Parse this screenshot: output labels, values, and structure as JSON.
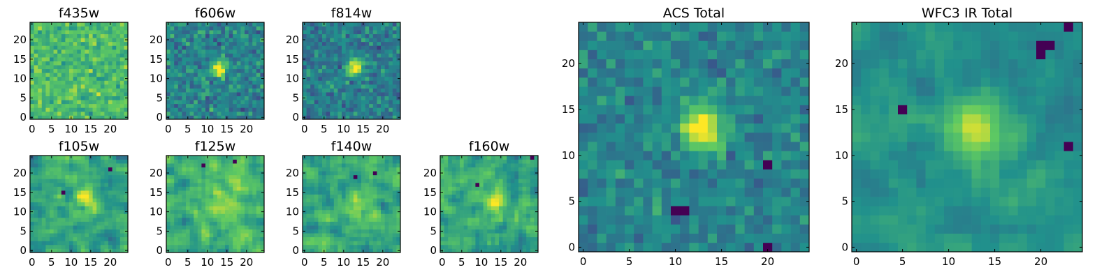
{
  "figure": {
    "background": "#ffffff",
    "colormap": "viridis",
    "colormap_stops": [
      "#440154",
      "#3b528b",
      "#21918c",
      "#5ec962",
      "#fde725"
    ]
  },
  "chart_data": [
    {
      "type": "heatmap",
      "title": "f435w",
      "xlim": [
        0,
        24
      ],
      "ylim": [
        0,
        24
      ],
      "xticks": [
        0,
        5,
        10,
        15,
        20
      ],
      "yticks": [
        0,
        5,
        10,
        15,
        20
      ],
      "grid_shape": [
        25,
        25
      ],
      "source_center": [
        13,
        12
      ],
      "source_radius": 1.5,
      "source_strength": 0.0,
      "noise_mean": 0.68,
      "noise_scale": 0.22,
      "smooth": 0,
      "seed": 11,
      "dark_spots": []
    },
    {
      "type": "heatmap",
      "title": "f606w",
      "xlim": [
        0,
        24
      ],
      "ylim": [
        0,
        24
      ],
      "xticks": [
        0,
        5,
        10,
        15,
        20
      ],
      "yticks": [
        0,
        5,
        10,
        15,
        20
      ],
      "grid_shape": [
        25,
        25
      ],
      "source_center": [
        13,
        12.5
      ],
      "source_radius": 1.4,
      "source_strength": 0.55,
      "noise_mean": 0.45,
      "noise_scale": 0.24,
      "smooth": 0,
      "seed": 23,
      "dark_spots": []
    },
    {
      "type": "heatmap",
      "title": "f814w",
      "xlim": [
        0,
        24
      ],
      "ylim": [
        0,
        24
      ],
      "xticks": [
        0,
        5,
        10,
        15,
        20
      ],
      "yticks": [
        0,
        5,
        10,
        15,
        20
      ],
      "grid_shape": [
        25,
        25
      ],
      "source_center": [
        13,
        13
      ],
      "source_radius": 1.5,
      "source_strength": 0.6,
      "noise_mean": 0.42,
      "noise_scale": 0.22,
      "smooth": 0,
      "seed": 37,
      "dark_spots": []
    },
    {
      "type": "heatmap",
      "title": "f105w",
      "xlim": [
        0,
        24
      ],
      "ylim": [
        0,
        24
      ],
      "xticks": [
        0,
        5,
        10,
        15,
        20
      ],
      "yticks": [
        0,
        5,
        10,
        15,
        20
      ],
      "grid_shape": [
        25,
        25
      ],
      "source_center": [
        13.5,
        13
      ],
      "source_radius": 2.0,
      "source_strength": 0.35,
      "noise_mean": 0.58,
      "noise_scale": 0.28,
      "smooth": 1,
      "seed": 41,
      "dark_spots": [
        [
          20,
          21
        ],
        [
          8,
          15
        ]
      ]
    },
    {
      "type": "heatmap",
      "title": "f125w",
      "xlim": [
        0,
        24
      ],
      "ylim": [
        0,
        24
      ],
      "xticks": [
        0,
        5,
        10,
        15,
        20
      ],
      "yticks": [
        0,
        5,
        10,
        15,
        20
      ],
      "grid_shape": [
        25,
        25
      ],
      "source_center": [
        13.5,
        12
      ],
      "source_radius": 2.2,
      "source_strength": 0.3,
      "noise_mean": 0.65,
      "noise_scale": 0.28,
      "smooth": 1,
      "seed": 53,
      "dark_spots": [
        [
          17,
          23
        ],
        [
          9,
          22
        ]
      ]
    },
    {
      "type": "heatmap",
      "title": "f140w",
      "xlim": [
        0,
        24
      ],
      "ylim": [
        0,
        24
      ],
      "xticks": [
        0,
        5,
        10,
        15,
        20
      ],
      "yticks": [
        0,
        5,
        10,
        15,
        20
      ],
      "grid_shape": [
        25,
        25
      ],
      "source_center": [
        13,
        12.5
      ],
      "source_radius": 2.0,
      "source_strength": 0.3,
      "noise_mean": 0.62,
      "noise_scale": 0.28,
      "smooth": 1,
      "seed": 67,
      "dark_spots": [
        [
          18,
          20
        ],
        [
          13,
          19
        ]
      ]
    },
    {
      "type": "heatmap",
      "title": "f160w",
      "xlim": [
        0,
        24
      ],
      "ylim": [
        0,
        24
      ],
      "xticks": [
        0,
        5,
        10,
        15,
        20
      ],
      "yticks": [
        0,
        5,
        10,
        15,
        20
      ],
      "grid_shape": [
        25,
        25
      ],
      "source_center": [
        13.5,
        12.5
      ],
      "source_radius": 1.8,
      "source_strength": 0.35,
      "noise_mean": 0.6,
      "noise_scale": 0.3,
      "smooth": 1,
      "seed": 79,
      "dark_spots": [
        [
          9,
          17
        ],
        [
          23,
          24
        ]
      ]
    },
    {
      "type": "heatmap",
      "title": "ACS Total",
      "xlim": [
        0,
        24
      ],
      "ylim": [
        0,
        24
      ],
      "xticks": [
        0,
        5,
        10,
        15,
        20
      ],
      "yticks": [
        0,
        5,
        10,
        15,
        20
      ],
      "grid_shape": [
        25,
        25
      ],
      "source_center": [
        13,
        13
      ],
      "source_radius": 1.7,
      "source_strength": 0.6,
      "noise_mean": 0.45,
      "noise_scale": 0.18,
      "smooth": 0,
      "seed": 91,
      "dark_spots": [
        [
          10,
          4
        ],
        [
          11,
          4
        ],
        [
          20,
          0
        ],
        [
          20,
          9
        ]
      ]
    },
    {
      "type": "heatmap",
      "title": "WFC3 IR Total",
      "xlim": [
        0,
        24
      ],
      "ylim": [
        0,
        24
      ],
      "xticks": [
        0,
        5,
        10,
        15,
        20
      ],
      "yticks": [
        0,
        5,
        10,
        15,
        20
      ],
      "grid_shape": [
        25,
        25
      ],
      "source_center": [
        13,
        13
      ],
      "source_radius": 2.2,
      "source_strength": 0.45,
      "noise_mean": 0.5,
      "noise_scale": 0.16,
      "smooth": 1,
      "seed": 103,
      "dark_spots": [
        [
          20,
          22
        ],
        [
          21,
          22
        ],
        [
          20,
          21
        ],
        [
          23,
          24
        ],
        [
          5,
          15
        ],
        [
          23,
          11
        ]
      ]
    }
  ]
}
